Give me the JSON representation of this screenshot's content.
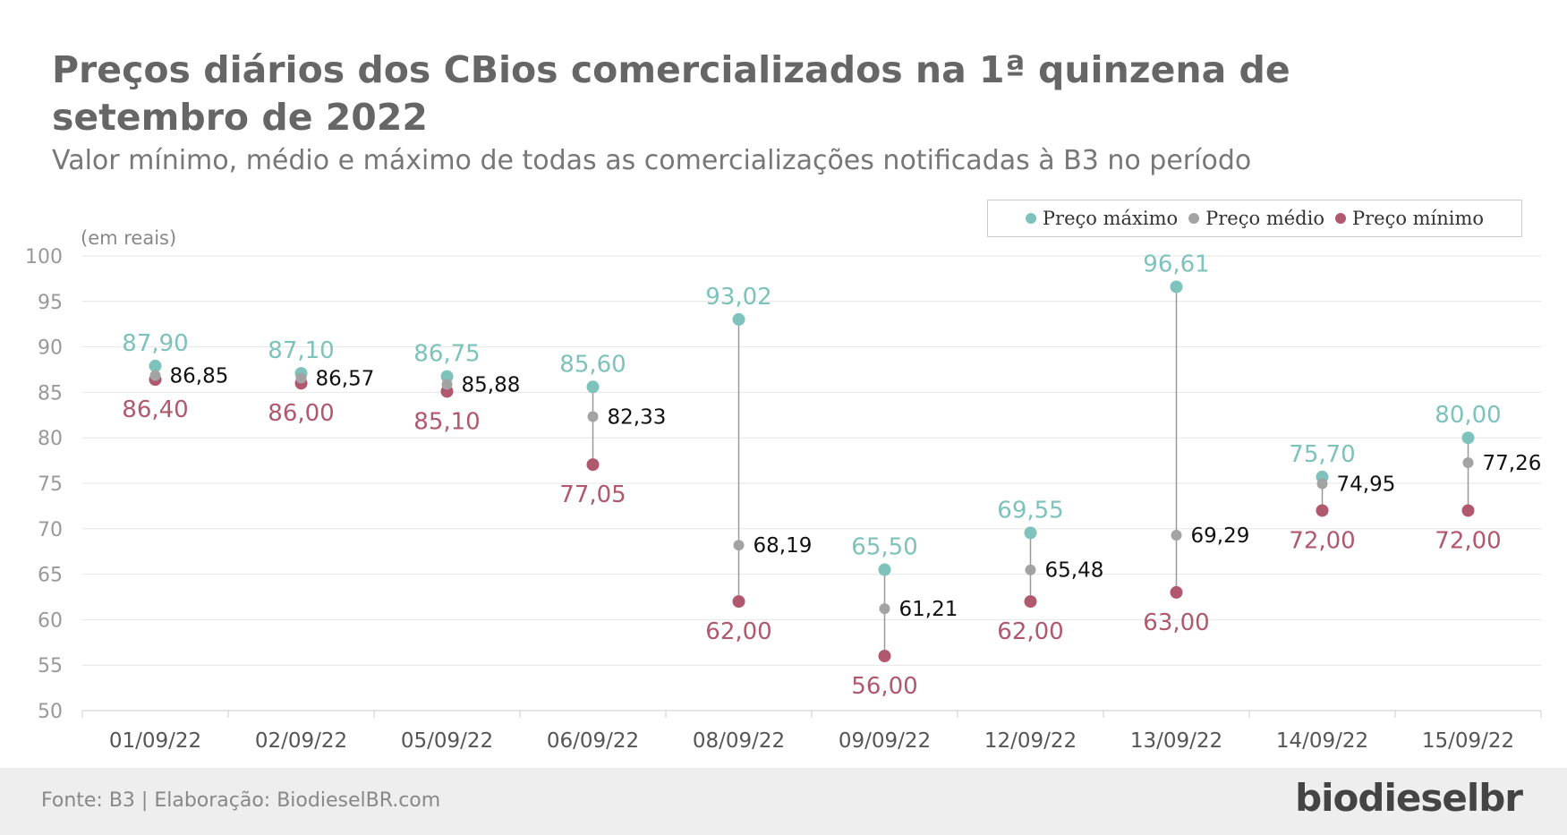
{
  "title": "Preços diários dos CBios comercializados na 1ª quinzena de setembro de 2022",
  "subtitle": "Valor mínimo, médio e máximo de todas as comercializações notificadas à B3 no período",
  "footer": {
    "source": "Fonte: B3 | Elaboração: BiodieselBR.com",
    "logo": "biodieselbr"
  },
  "colors": {
    "max": "#7dc2bb",
    "avg": "#a3a3a3",
    "min": "#b0586e"
  },
  "chart_data": {
    "type": "scatter",
    "ylabel": "(em reais)",
    "ylim": [
      50,
      100
    ],
    "yticks": [
      "100",
      "95",
      "90",
      "85",
      "80",
      "75",
      "70",
      "65",
      "60",
      "55",
      "50"
    ],
    "categories": [
      "01/09/22",
      "02/09/22",
      "05/09/22",
      "06/09/22",
      "08/09/22",
      "09/09/22",
      "12/09/22",
      "13/09/22",
      "14/09/22",
      "15/09/22"
    ],
    "legend_position": "top-right",
    "grid": true,
    "series": [
      {
        "name": "Preço máximo",
        "values": [
          87.9,
          87.1,
          86.75,
          85.6,
          93.02,
          65.5,
          69.55,
          96.61,
          75.7,
          80.0
        ],
        "labels": [
          "87,90",
          "87,10",
          "86,75",
          "85,60",
          "93,02",
          "65,50",
          "69,55",
          "96,61",
          "75,70",
          "80,00"
        ]
      },
      {
        "name": "Preço médio",
        "values": [
          86.85,
          86.57,
          85.88,
          82.33,
          68.19,
          61.21,
          65.48,
          69.29,
          74.95,
          77.26
        ],
        "labels": [
          "86,85",
          "86,57",
          "85,88",
          "82,33",
          "68,19",
          "61,21",
          "65,48",
          "69,29",
          "74,95",
          "77,26"
        ]
      },
      {
        "name": "Preço mínimo",
        "values": [
          86.4,
          86.0,
          85.1,
          77.05,
          62.0,
          56.0,
          62.0,
          63.0,
          72.0,
          72.0
        ],
        "labels": [
          "86,40",
          "86,00",
          "85,10",
          "77,05",
          "62,00",
          "56,00",
          "62,00",
          "63,00",
          "72,00",
          "72,00"
        ]
      }
    ]
  }
}
